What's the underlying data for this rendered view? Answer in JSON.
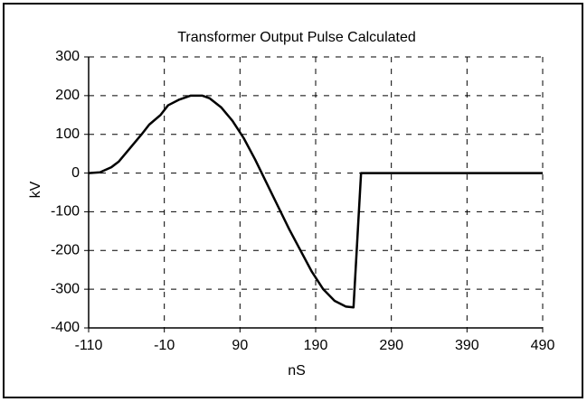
{
  "chart_data": {
    "type": "line",
    "title": "Transformer Output Pulse Calculated",
    "x_label": "nS",
    "y_label": "kV",
    "x": [
      -110,
      -95,
      -80,
      -70,
      -55,
      -40,
      -30,
      -15,
      -5,
      10,
      25,
      40,
      50,
      65,
      80,
      95,
      110,
      125,
      140,
      155,
      170,
      185,
      200,
      215,
      230,
      240,
      250,
      490
    ],
    "series": [
      {
        "name": "kV",
        "color": "#000000",
        "values": [
          0,
          2,
          15,
          30,
          65,
          100,
          125,
          150,
          175,
          190,
          200,
          200,
          193,
          170,
          135,
          90,
          35,
          -25,
          -85,
          -145,
          -200,
          -255,
          -300,
          -330,
          -345,
          -347,
          0,
          0
        ]
      }
    ],
    "xlim": [
      -110,
      490
    ],
    "xticks": [
      -110,
      -10,
      90,
      190,
      290,
      390,
      490
    ],
    "ylim": [
      -400,
      300
    ],
    "yticks": [
      -400,
      -300,
      -200,
      -100,
      0,
      100,
      200,
      300
    ],
    "grid": true
  }
}
